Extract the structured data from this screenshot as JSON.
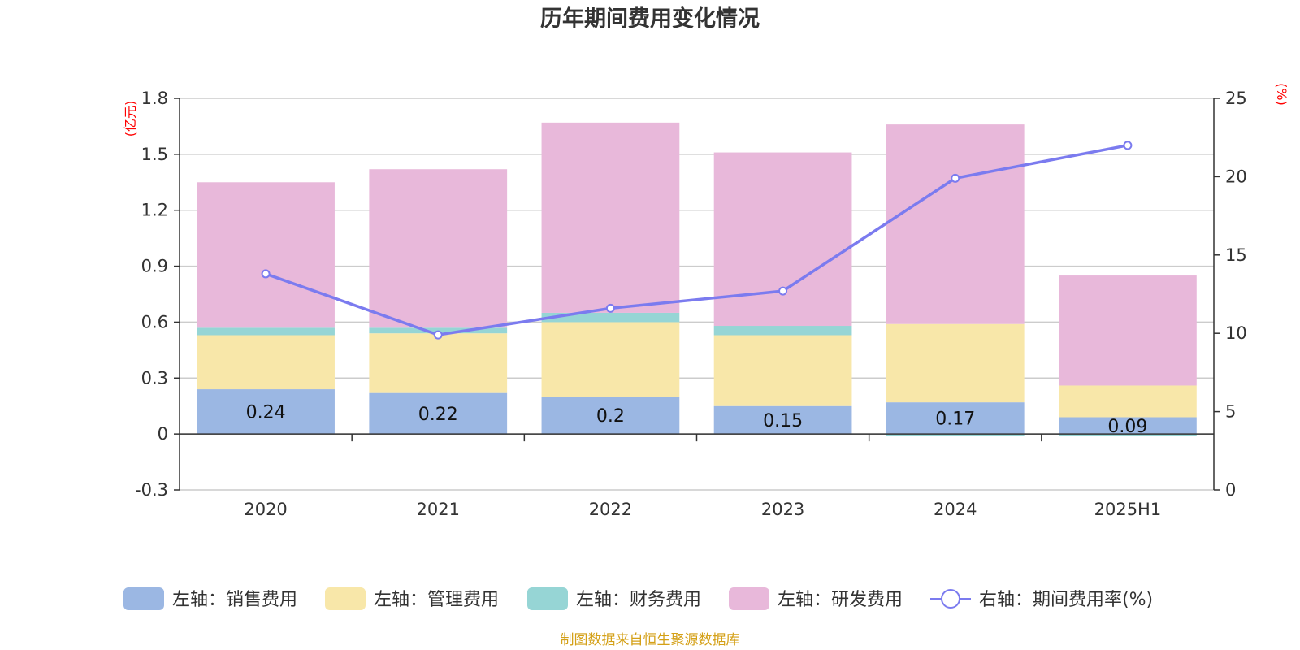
{
  "chart_data": {
    "type": "bar",
    "stacked": true,
    "title": "历年期间费用变化情况",
    "categories": [
      "2020",
      "2021",
      "2022",
      "2023",
      "2024",
      "2025H1"
    ],
    "left_axis": {
      "unit": "(亿元)",
      "range": [
        -0.3,
        1.8
      ],
      "ticks": [
        -0.3,
        0,
        0.3,
        0.6,
        0.9,
        1.2,
        1.5,
        1.8
      ],
      "tick_labels": [
        "-0.3",
        "0",
        "0.3",
        "0.6",
        "0.9",
        "1.2",
        "1.5",
        "1.8"
      ]
    },
    "right_axis": {
      "unit": "(%)",
      "range": [
        0,
        25
      ],
      "ticks": [
        0,
        5,
        10,
        15,
        20,
        25
      ],
      "tick_labels": [
        "0",
        "5",
        "10",
        "15",
        "20",
        "25"
      ]
    },
    "series": [
      {
        "name": "左轴：销售费用",
        "axis": "left",
        "type": "bar",
        "color": "#9bb7e3",
        "values": [
          0.24,
          0.22,
          0.2,
          0.15,
          0.17,
          0.09
        ],
        "data_labels": [
          "0.24",
          "0.22",
          "0.2",
          "0.15",
          "0.17",
          "0.09"
        ]
      },
      {
        "name": "左轴：管理费用",
        "axis": "left",
        "type": "bar",
        "color": "#f8e7a9",
        "values": [
          0.29,
          0.32,
          0.4,
          0.38,
          0.42,
          0.17
        ]
      },
      {
        "name": "左轴：财务费用",
        "axis": "left",
        "type": "bar",
        "color": "#96d5d5",
        "values": [
          0.04,
          0.03,
          0.05,
          0.05,
          -0.01,
          -0.01
        ]
      },
      {
        "name": "左轴：研发费用",
        "axis": "left",
        "type": "bar",
        "color": "#e8b8da",
        "values": [
          0.78,
          0.85,
          1.02,
          0.93,
          1.07,
          0.59
        ]
      },
      {
        "name": "右轴：期间费用率(%)",
        "axis": "right",
        "type": "line",
        "color": "#7b7bef",
        "values": [
          13.8,
          9.9,
          11.6,
          12.7,
          19.9,
          22.0
        ]
      }
    ],
    "grid": true,
    "legend_position": "bottom",
    "source": "制图数据来自恒生聚源数据库"
  }
}
